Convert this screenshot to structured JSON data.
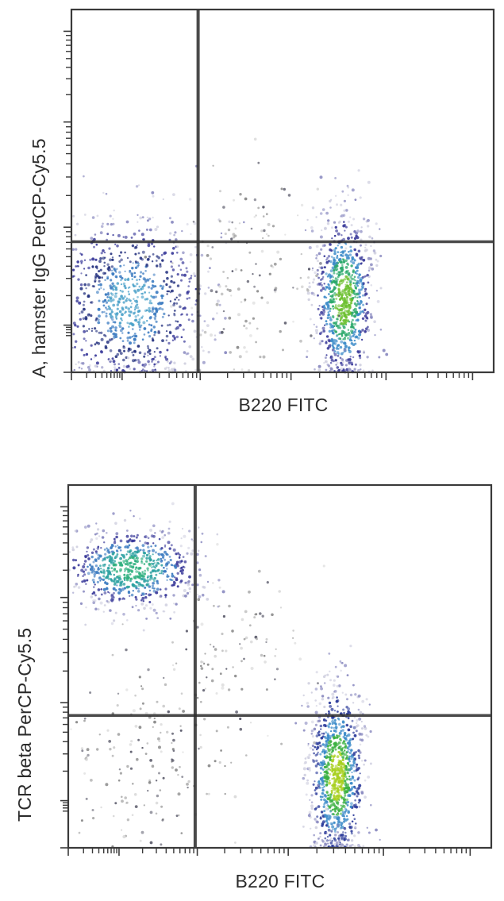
{
  "chart_data": [
    {
      "type": "scatter",
      "subtype": "flow-cytometry-density-dot-plot",
      "title": "",
      "xlabel": "B220 FITC",
      "ylabel": "A, hamster IgG PerCP-Cy5.5",
      "x_scale": "log (biexponential)",
      "y_scale": "log (biexponential)",
      "tick_labels_shown": false,
      "grid": false,
      "legend": null,
      "quadrant_gates": {
        "x_fraction": 0.3,
        "y_fraction": 0.36
      },
      "colormap": [
        "#c8c8d8",
        "#6a6aa8",
        "#2a3a9a",
        "#3a8ac8",
        "#2aa87a",
        "#7ac82a"
      ],
      "populations": [
        {
          "name": "B220- cells (lower-left)",
          "cx": 0.14,
          "cy": 0.19,
          "sx": 0.09,
          "sy": 0.12,
          "n": 900,
          "peak_color": "blue"
        },
        {
          "name": "B220+ cells (lower-right)",
          "cx": 0.645,
          "cy": 0.2,
          "sx": 0.035,
          "sy": 0.12,
          "n": 900,
          "peak_color": "green"
        },
        {
          "name": "scatter (lower-middle)",
          "cx": 0.44,
          "cy": 0.22,
          "sx": 0.09,
          "sy": 0.11,
          "n": 110,
          "peak_color": "gray"
        },
        {
          "name": "sparse upper events",
          "cx": 0.44,
          "cy": 0.45,
          "sx": 0.06,
          "sy": 0.08,
          "n": 30,
          "peak_color": "gray"
        }
      ]
    },
    {
      "type": "scatter",
      "subtype": "flow-cytometry-density-dot-plot",
      "title": "",
      "xlabel": "B220 FITC",
      "ylabel": "TCR beta PerCP-Cy5.5",
      "x_scale": "log (biexponential)",
      "y_scale": "log (biexponential)",
      "tick_labels_shown": false,
      "grid": false,
      "legend": null,
      "quadrant_gates": {
        "x_fraction": 0.3,
        "y_fraction": 0.365
      },
      "colormap": [
        "#c8c8d8",
        "#6a6aa8",
        "#2a3a9a",
        "#3a8ac8",
        "#2aa87a",
        "#7ac82a"
      ],
      "populations": [
        {
          "name": "TCRb+ B220- T cells (upper-left)",
          "cx": 0.15,
          "cy": 0.77,
          "sx": 0.08,
          "sy": 0.055,
          "n": 750,
          "peak_color": "teal"
        },
        {
          "name": "TCRb- B220+ B cells (lower-right)",
          "cx": 0.635,
          "cy": 0.2,
          "sx": 0.032,
          "sy": 0.12,
          "n": 1000,
          "peak_color": "yellow-green"
        },
        {
          "name": "double-negative scatter (lower-left)",
          "cx": 0.17,
          "cy": 0.22,
          "sx": 0.1,
          "sy": 0.12,
          "n": 160,
          "peak_color": "gray"
        },
        {
          "name": "diagonal scatter",
          "cx": 0.38,
          "cy": 0.5,
          "sx": 0.09,
          "sy": 0.13,
          "n": 110,
          "peak_color": "gray"
        }
      ]
    }
  ],
  "panels": [
    {
      "ylabel": "A, hamster IgG PerCP-Cy5.5",
      "xlabel": "B220 FITC"
    },
    {
      "ylabel": "TCR beta PerCP-Cy5.5",
      "xlabel": "B220 FITC"
    }
  ]
}
